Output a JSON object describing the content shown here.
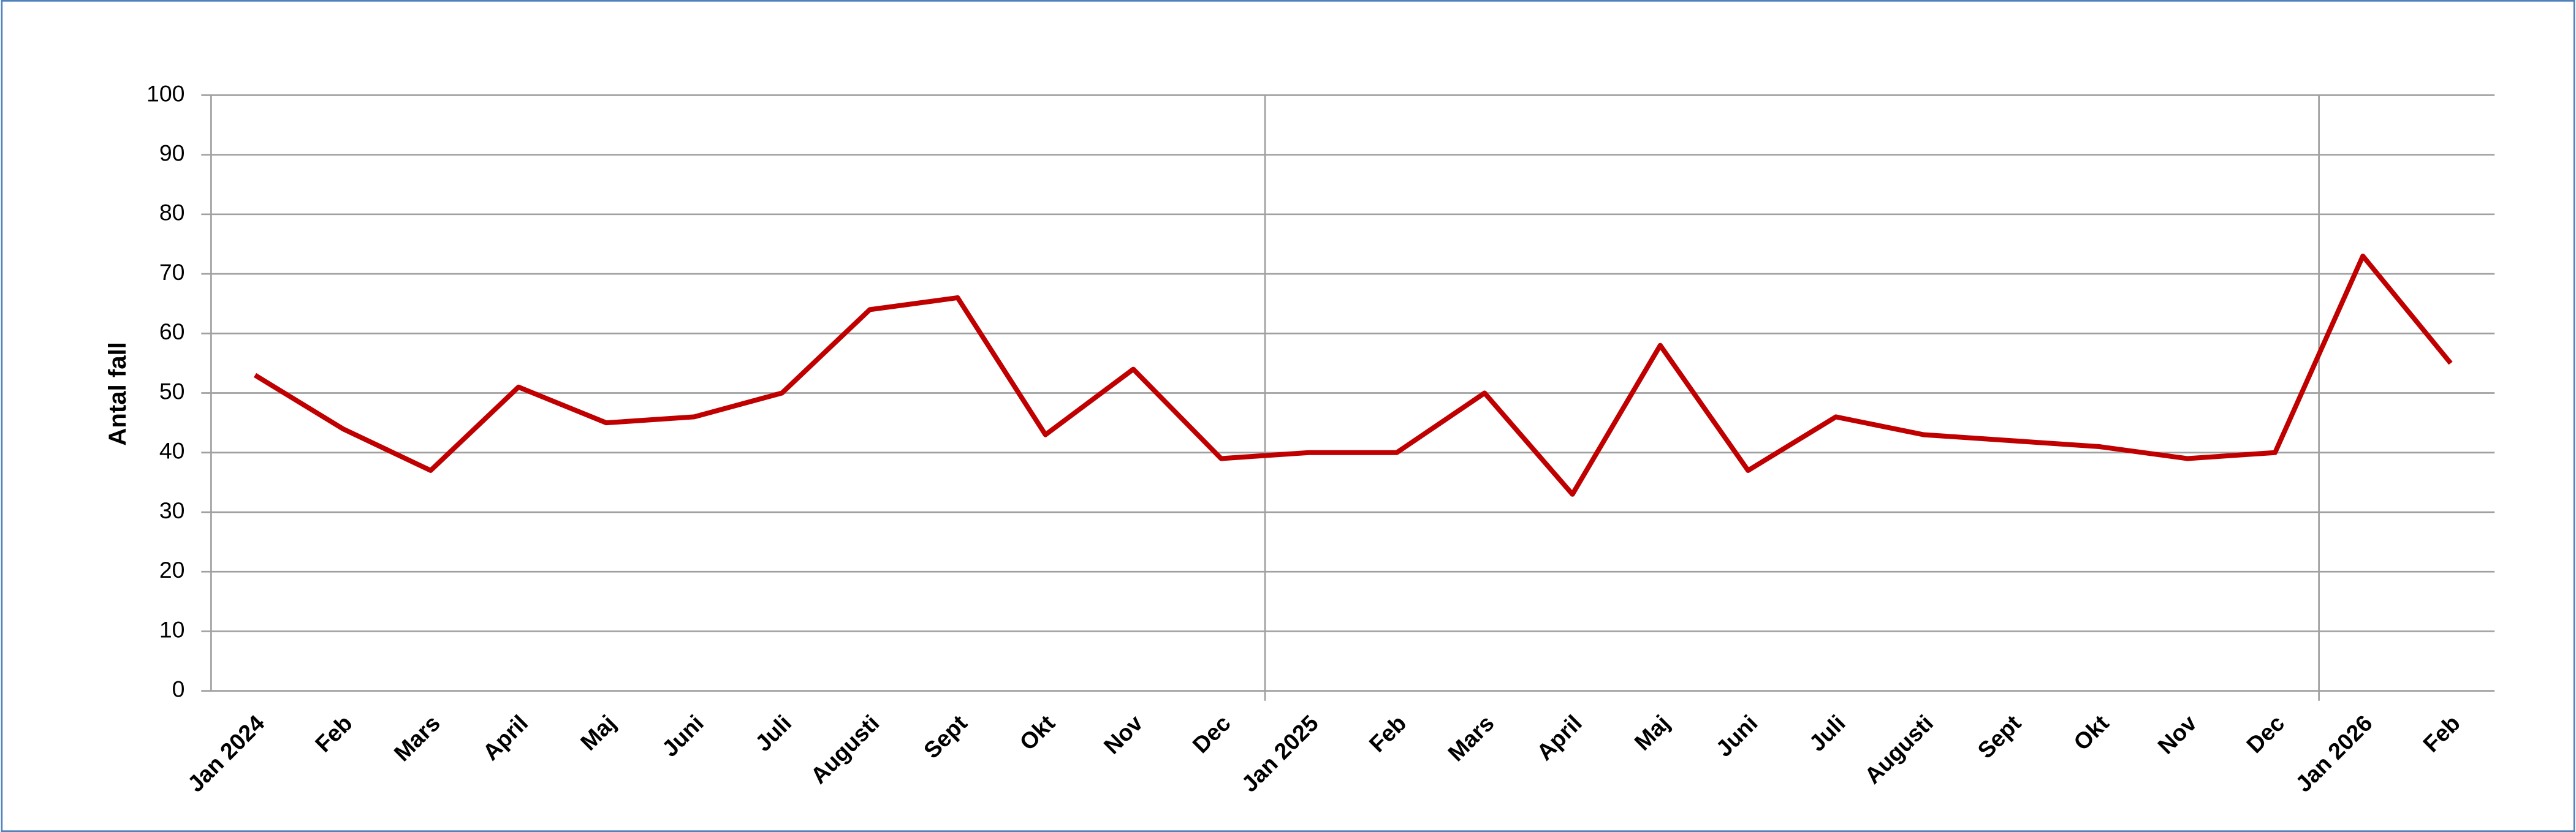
{
  "chart_data": {
    "type": "line",
    "y_label": "Antal fall",
    "categories": [
      "Jan 2024",
      "Feb",
      "Mars",
      "April",
      "Maj",
      "Juni",
      "Juli",
      "Augusti",
      "Sept",
      "Okt",
      "Nov",
      "Dec",
      "Jan 2025",
      "Feb",
      "Mars",
      "April",
      "Maj",
      "Juni",
      "Juli",
      "Augusti",
      "Sept",
      "Okt",
      "Nov",
      "Dec",
      "Jan 2026",
      "Feb"
    ],
    "series": [
      {
        "color": "#c00000",
        "values": [
          53,
          44,
          37,
          51,
          45,
          46,
          50,
          64,
          66,
          43,
          54,
          39,
          40,
          40,
          50,
          33,
          58,
          37,
          46,
          43,
          42,
          41,
          39,
          40,
          73,
          55
        ]
      }
    ],
    "ylim": [
      0,
      100
    ],
    "yticks": [
      0,
      10,
      20,
      30,
      40,
      50,
      60,
      70,
      80,
      90,
      100
    ],
    "grid": true
  }
}
